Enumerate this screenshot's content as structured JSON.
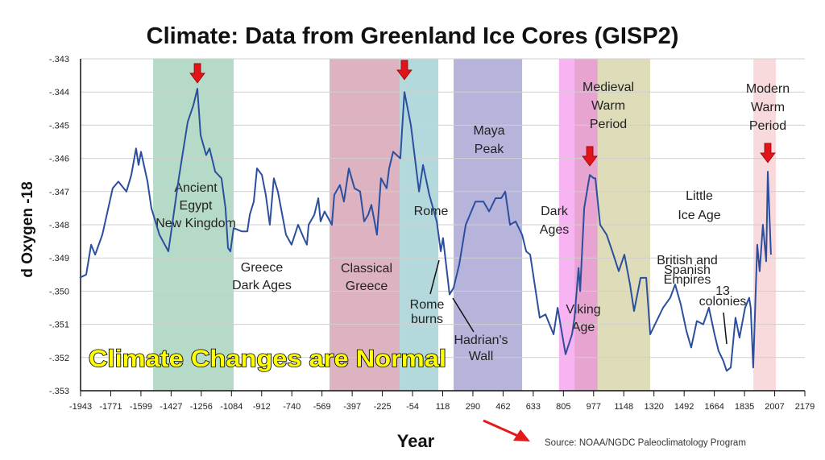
{
  "chart_data": {
    "type": "line",
    "title": "Climate: Data from Greenland Ice Cores (GISP2)",
    "xlabel": "Year",
    "ylabel": "d Oxygen -18",
    "xlim": [
      -1943,
      2179
    ],
    "ylim": [
      -0.353,
      -0.343
    ],
    "xticks": [
      "-1943",
      "-1771",
      "-1599",
      "-1427",
      "-1256",
      "-1084",
      "-912",
      "-740",
      "-569",
      "-397",
      "-225",
      "-54",
      "118",
      "290",
      "462",
      "633",
      "805",
      "977",
      "1148",
      "1320",
      "1492",
      "1664",
      "1835",
      "2007",
      "2179"
    ],
    "yticks": [
      "-.343",
      "-.344",
      "-.345",
      "-.346",
      "-.347",
      "-.348",
      "-.349",
      "-.350",
      "-.351",
      "-.352",
      "-.353"
    ],
    "grid": true,
    "series": [
      {
        "name": "d18O",
        "color": "#2b4f9e",
        "x": [
          -1948,
          -1911,
          -1883,
          -1860,
          -1819,
          -1760,
          -1728,
          -1682,
          -1654,
          -1627,
          -1613,
          -1599,
          -1562,
          -1540,
          -1494,
          -1443,
          -1384,
          -1333,
          -1301,
          -1278,
          -1260,
          -1228,
          -1209,
          -1177,
          -1141,
          -1118,
          -1104,
          -1090,
          -1072,
          -1026,
          -994,
          -980,
          -957,
          -939,
          -911,
          -889,
          -866,
          -843,
          -820,
          -774,
          -742,
          -705,
          -673,
          -655,
          -645,
          -613,
          -590,
          -577,
          -554,
          -513,
          -499,
          -467,
          -444,
          -416,
          -384,
          -352,
          -329,
          -306,
          -288,
          -256,
          -233,
          -201,
          -187,
          -164,
          -123,
          -100,
          -63,
          -17,
          6,
          42,
          84,
          107,
          120,
          157,
          180,
          212,
          249,
          304,
          350,
          382,
          419,
          451,
          474,
          501,
          533,
          570,
          593,
          616,
          670,
          703,
          749,
          772,
          817,
          854,
          868,
          891,
          900,
          923,
          955,
          978,
          987,
          1014,
          1051,
          1083,
          1120,
          1152,
          1184,
          1207,
          1244,
          1276,
          1299,
          1326,
          1372,
          1413,
          1441,
          1473,
          1505,
          1532,
          1564,
          1601,
          1633,
          1665,
          1688,
          1715,
          1734,
          1757,
          1784,
          1807,
          1839,
          1862,
          1871,
          1885,
          1908,
          1922,
          1940,
          1959,
          1968,
          1986
        ],
        "y": [
          -0.3496,
          -0.3495,
          -0.3486,
          -0.3489,
          -0.3483,
          -0.3469,
          -0.3467,
          -0.347,
          -0.3465,
          -0.3457,
          -0.3462,
          -0.3458,
          -0.3467,
          -0.3475,
          -0.3483,
          -0.3488,
          -0.3466,
          -0.3449,
          -0.3444,
          -0.3439,
          -0.3453,
          -0.3459,
          -0.3457,
          -0.3464,
          -0.3466,
          -0.3475,
          -0.3487,
          -0.3488,
          -0.3481,
          -0.3482,
          -0.3482,
          -0.3477,
          -0.3473,
          -0.3463,
          -0.3465,
          -0.3471,
          -0.348,
          -0.3466,
          -0.347,
          -0.3483,
          -0.3486,
          -0.348,
          -0.3484,
          -0.3486,
          -0.348,
          -0.3477,
          -0.3472,
          -0.3479,
          -0.3476,
          -0.348,
          -0.3471,
          -0.3468,
          -0.3473,
          -0.3463,
          -0.3469,
          -0.347,
          -0.3479,
          -0.3477,
          -0.3474,
          -0.3483,
          -0.3466,
          -0.3469,
          -0.3463,
          -0.3458,
          -0.346,
          -0.344,
          -0.345,
          -0.347,
          -0.3462,
          -0.3471,
          -0.3479,
          -0.3488,
          -0.3484,
          -0.3501,
          -0.3499,
          -0.3492,
          -0.348,
          -0.3473,
          -0.3473,
          -0.3476,
          -0.3472,
          -0.3472,
          -0.347,
          -0.348,
          -0.3479,
          -0.3483,
          -0.3488,
          -0.3489,
          -0.3508,
          -0.3507,
          -0.3513,
          -0.3505,
          -0.3519,
          -0.3513,
          -0.3508,
          -0.3493,
          -0.35,
          -0.3475,
          -0.3465,
          -0.3466,
          -0.3466,
          -0.348,
          -0.3483,
          -0.3488,
          -0.3494,
          -0.3489,
          -0.3498,
          -0.3506,
          -0.3496,
          -0.3496,
          -0.3513,
          -0.351,
          -0.3505,
          -0.3502,
          -0.3498,
          -0.3504,
          -0.3512,
          -0.3517,
          -0.3509,
          -0.351,
          -0.3505,
          -0.3513,
          -0.3518,
          -0.3521,
          -0.3524,
          -0.3523,
          -0.3508,
          -0.3514,
          -0.3505,
          -0.3502,
          -0.3505,
          -0.3523,
          -0.3486,
          -0.3494,
          -0.348,
          -0.3491,
          -0.3464,
          -0.3489
        ]
      }
    ],
    "bands": [
      {
        "from": -1530,
        "to": -1072,
        "color": "#a8d5be"
      },
      {
        "from": -526,
        "to": -127,
        "color": "#d7a6b6"
      },
      {
        "from": -127,
        "to": 93,
        "color": "#a7d2d6"
      },
      {
        "from": 180,
        "to": 570,
        "color": "#aaa7d6"
      },
      {
        "from": 780,
        "to": 868,
        "color": "#f6a6f0"
      },
      {
        "from": 868,
        "to": 1000,
        "color": "#e394c8"
      },
      {
        "from": 1000,
        "to": 1299,
        "color": "#d9d7ad"
      },
      {
        "from": 1886,
        "to": 2014,
        "color": "#f8d4d6"
      }
    ],
    "peak_arrows": [
      {
        "year": -1278,
        "value": -0.3438
      },
      {
        "year": -100,
        "value": -0.3437
      },
      {
        "year": 955,
        "value": -0.3463
      },
      {
        "year": 1968,
        "value": -0.3462
      }
    ],
    "annotations": [
      {
        "lines": [
          "Ancient",
          "Egypt",
          "New Kingdom"
        ]
      },
      {
        "lines": [
          "Greece",
          "Dark Ages"
        ]
      },
      {
        "lines": [
          "Classical",
          "Greece"
        ]
      },
      {
        "lines": [
          "Rome"
        ]
      },
      {
        "lines": [
          "Rome",
          "burns"
        ]
      },
      {
        "lines": [
          "Hadrian's",
          "Wall"
        ]
      },
      {
        "lines": [
          "Maya",
          "Peak"
        ]
      },
      {
        "lines": [
          "Dark",
          "Ages"
        ]
      },
      {
        "lines": [
          "Viking",
          "Age"
        ]
      },
      {
        "lines": [
          "Medieval",
          "Warm",
          "Period"
        ]
      },
      {
        "lines": [
          "Little",
          "Ice Age"
        ]
      },
      {
        "lines": [
          "British and",
          "Spanish",
          "Empires"
        ]
      },
      {
        "lines": [
          "13",
          "colonies"
        ]
      },
      {
        "lines": [
          "Modern",
          "Warm",
          "Period"
        ]
      }
    ],
    "overlay_text": "Climate Changes are Normal",
    "source": "Source: NOAA/NGDC Paleoclimatology Program"
  }
}
